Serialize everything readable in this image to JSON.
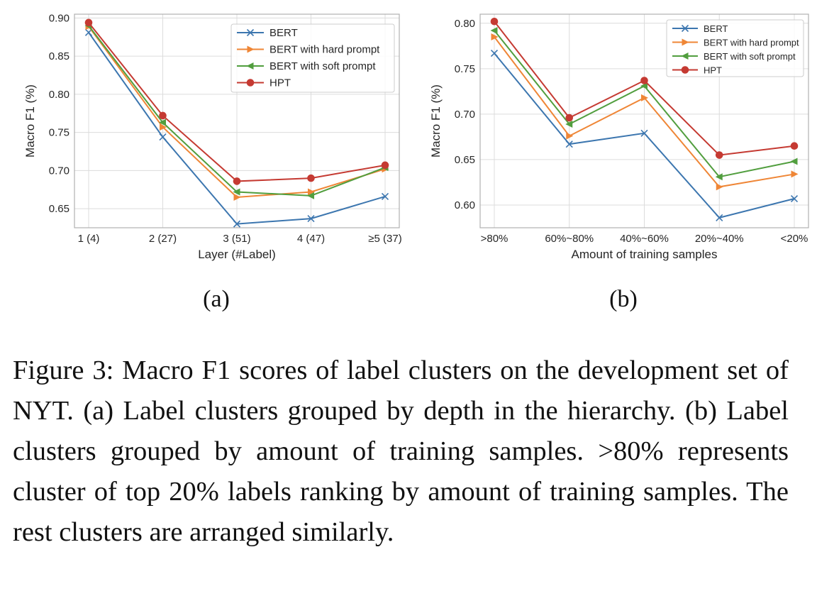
{
  "chart_data": [
    {
      "type": "line",
      "panel_label": "(a)",
      "xlabel": "Layer (#Label)",
      "ylabel": "Macro F1 (%)",
      "categories": [
        "1 (4)",
        "2 (27)",
        "3 (51)",
        "4 (47)",
        "≥5 (37)"
      ],
      "ylim": [
        0.625,
        0.905
      ],
      "yticks": [
        "0.65",
        "0.70",
        "0.75",
        "0.80",
        "0.85",
        "0.90"
      ],
      "grid": true,
      "legend_position": "top-right",
      "series": [
        {
          "name": "BERT",
          "color": "#3c76af",
          "marker": "x",
          "values": [
            0.881,
            0.744,
            0.63,
            0.637,
            0.666
          ]
        },
        {
          "name": "BERT with hard prompt",
          "color": "#ef8636",
          "marker": "triangle-right",
          "values": [
            0.889,
            0.757,
            0.665,
            0.672,
            0.702
          ]
        },
        {
          "name": "BERT with soft prompt",
          "color": "#519e3e",
          "marker": "triangle-left",
          "values": [
            0.89,
            0.763,
            0.672,
            0.667,
            0.704
          ]
        },
        {
          "name": "HPT",
          "color": "#c53a32",
          "marker": "circle",
          "values": [
            0.894,
            0.772,
            0.686,
            0.69,
            0.707
          ]
        }
      ]
    },
    {
      "type": "line",
      "panel_label": "(b)",
      "xlabel": "Amount of training samples",
      "ylabel": "Macro F1 (%)",
      "categories": [
        ">80%",
        "60%~80%",
        "40%~60%",
        "20%~40%",
        "<20%"
      ],
      "ylim": [
        0.575,
        0.81
      ],
      "yticks": [
        "0.60",
        "0.65",
        "0.70",
        "0.75",
        "0.80"
      ],
      "grid": true,
      "legend_position": "top-right",
      "series": [
        {
          "name": "BERT",
          "color": "#3c76af",
          "marker": "x",
          "values": [
            0.767,
            0.667,
            0.679,
            0.586,
            0.607
          ]
        },
        {
          "name": "BERT with hard prompt",
          "color": "#ef8636",
          "marker": "triangle-right",
          "values": [
            0.785,
            0.676,
            0.718,
            0.62,
            0.634
          ]
        },
        {
          "name": "BERT with soft prompt",
          "color": "#519e3e",
          "marker": "triangle-left",
          "values": [
            0.792,
            0.689,
            0.731,
            0.631,
            0.648
          ]
        },
        {
          "name": "HPT",
          "color": "#c53a32",
          "marker": "circle",
          "values": [
            0.802,
            0.696,
            0.737,
            0.655,
            0.665
          ]
        }
      ]
    }
  ],
  "caption": "Figure 3: Macro F1 scores of label clusters on the development set of NYT. (a) Label clusters grouped by depth in the hierarchy.  (b) Label clusters grouped by amount of training samples.  >80% represents cluster of top 20% labels ranking by amount of training samples. The rest clusters are arranged similarly."
}
